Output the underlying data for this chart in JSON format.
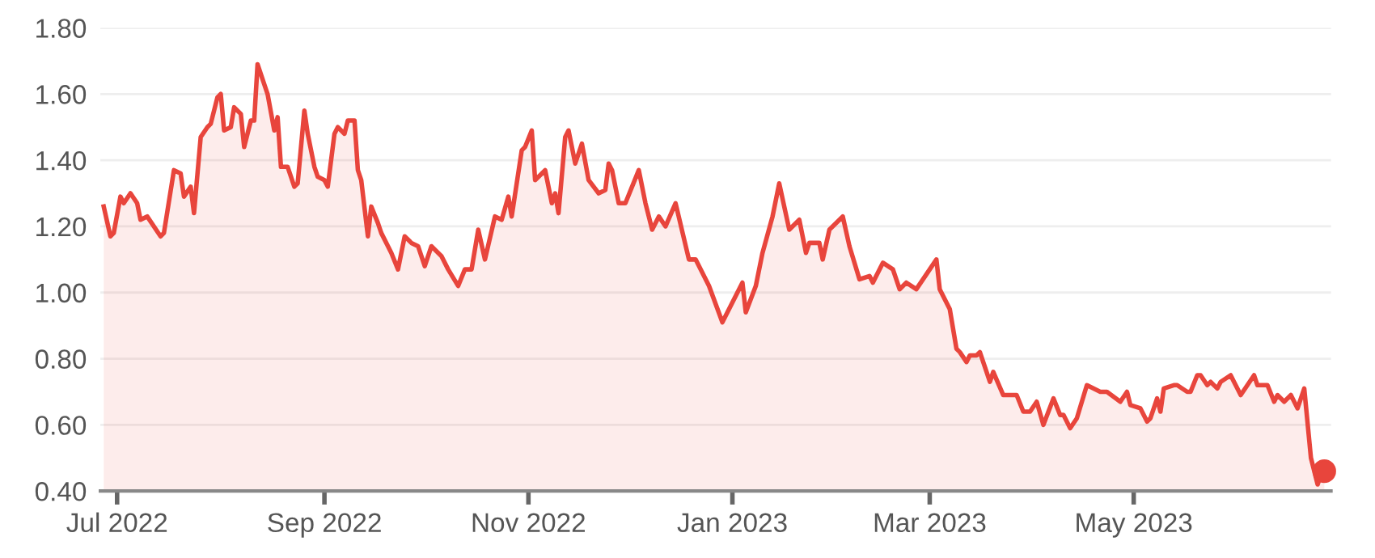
{
  "chart_data": {
    "type": "area",
    "grid": "y",
    "xlim": [
      "2022-06-26",
      "2023-06-29"
    ],
    "xticks": [
      {
        "value": "2022-07-01",
        "label": "Jul 2022"
      },
      {
        "value": "2022-09-01",
        "label": "Sep 2022"
      },
      {
        "value": "2022-11-01",
        "label": "Nov 2022"
      },
      {
        "value": "2023-01-01",
        "label": "Jan 2023"
      },
      {
        "value": "2023-03-01",
        "label": "Mar 2023"
      },
      {
        "value": "2023-05-01",
        "label": "May 2023"
      }
    ],
    "ylim": [
      0.4,
      1.8
    ],
    "yticks": [
      {
        "value": 0.4,
        "label": "0.40"
      },
      {
        "value": 0.6,
        "label": "0.60"
      },
      {
        "value": 0.8,
        "label": "0.80"
      },
      {
        "value": 1.0,
        "label": "1.00"
      },
      {
        "value": 1.2,
        "label": "1.20"
      },
      {
        "value": 1.4,
        "label": "1.40"
      },
      {
        "value": 1.6,
        "label": "1.60"
      },
      {
        "value": 1.8,
        "label": "1.80"
      }
    ],
    "series": [
      {
        "color": "#e8453c",
        "marker": "none",
        "line_style": "solid",
        "x": [
          "2022-06-27",
          "2022-06-29",
          "2022-06-30",
          "2022-07-02",
          "2022-07-03",
          "2022-07-05",
          "2022-07-07",
          "2022-07-08",
          "2022-07-10",
          "2022-07-14",
          "2022-07-15",
          "2022-07-18",
          "2022-07-20",
          "2022-07-21",
          "2022-07-23",
          "2022-07-24",
          "2022-07-26",
          "2022-07-28",
          "2022-07-29",
          "2022-07-31",
          "2022-08-01",
          "2022-08-02",
          "2022-08-04",
          "2022-08-05",
          "2022-08-07",
          "2022-08-08",
          "2022-08-10",
          "2022-08-11",
          "2022-08-12",
          "2022-08-14",
          "2022-08-15",
          "2022-08-17",
          "2022-08-18",
          "2022-08-19",
          "2022-08-21",
          "2022-08-23",
          "2022-08-24",
          "2022-08-26",
          "2022-08-27",
          "2022-08-29",
          "2022-08-30",
          "2022-09-01",
          "2022-09-02",
          "2022-09-04",
          "2022-09-05",
          "2022-09-07",
          "2022-09-08",
          "2022-09-10",
          "2022-09-11",
          "2022-09-12",
          "2022-09-14",
          "2022-09-15",
          "2022-09-17",
          "2022-09-18",
          "2022-09-20",
          "2022-09-21",
          "2022-09-23",
          "2022-09-25",
          "2022-09-27",
          "2022-09-29",
          "2022-10-01",
          "2022-10-03",
          "2022-10-06",
          "2022-10-08",
          "2022-10-11",
          "2022-10-13",
          "2022-10-15",
          "2022-10-17",
          "2022-10-19",
          "2022-10-22",
          "2022-10-24",
          "2022-10-26",
          "2022-10-27",
          "2022-10-30",
          "2022-10-31",
          "2022-11-02",
          "2022-11-03",
          "2022-11-06",
          "2022-11-08",
          "2022-11-09",
          "2022-11-10",
          "2022-11-12",
          "2022-11-13",
          "2022-11-15",
          "2022-11-17",
          "2022-11-19",
          "2022-11-22",
          "2022-11-24",
          "2022-11-25",
          "2022-11-26",
          "2022-11-28",
          "2022-11-30",
          "2022-12-04",
          "2022-12-06",
          "2022-12-08",
          "2022-12-10",
          "2022-12-12",
          "2022-12-15",
          "2022-12-19",
          "2022-12-21",
          "2022-12-25",
          "2022-12-29",
          "2023-01-04",
          "2023-01-05",
          "2023-01-08",
          "2023-01-10",
          "2023-01-13",
          "2023-01-15",
          "2023-01-18",
          "2023-01-21",
          "2023-01-23",
          "2023-01-24",
          "2023-01-27",
          "2023-01-28",
          "2023-01-30",
          "2023-02-03",
          "2023-02-05",
          "2023-02-08",
          "2023-02-11",
          "2023-02-12",
          "2023-02-15",
          "2023-02-18",
          "2023-02-20",
          "2023-02-22",
          "2023-02-25",
          "2023-03-01",
          "2023-03-03",
          "2023-03-04",
          "2023-03-07",
          "2023-03-09",
          "2023-03-10",
          "2023-03-12",
          "2023-03-13",
          "2023-03-15",
          "2023-03-16",
          "2023-03-19",
          "2023-03-20",
          "2023-03-23",
          "2023-03-27",
          "2023-03-29",
          "2023-03-31",
          "2023-04-02",
          "2023-04-04",
          "2023-04-07",
          "2023-04-09",
          "2023-04-10",
          "2023-04-12",
          "2023-04-14",
          "2023-04-17",
          "2023-04-21",
          "2023-04-23",
          "2023-04-27",
          "2023-04-29",
          "2023-04-30",
          "2023-05-03",
          "2023-05-05",
          "2023-05-06",
          "2023-05-08",
          "2023-05-09",
          "2023-05-10",
          "2023-05-13",
          "2023-05-14",
          "2023-05-17",
          "2023-05-18",
          "2023-05-20",
          "2023-05-21",
          "2023-05-23",
          "2023-05-24",
          "2023-05-26",
          "2023-05-27",
          "2023-05-30",
          "2023-05-31",
          "2023-06-02",
          "2023-06-04",
          "2023-06-06",
          "2023-06-07",
          "2023-06-10",
          "2023-06-12",
          "2023-06-13",
          "2023-06-15",
          "2023-06-17",
          "2023-06-19",
          "2023-06-21",
          "2023-06-23",
          "2023-06-25",
          "2023-06-26",
          "2023-06-27"
        ],
        "values": [
          1.26,
          1.17,
          1.18,
          1.29,
          1.27,
          1.3,
          1.27,
          1.22,
          1.23,
          1.17,
          1.18,
          1.37,
          1.36,
          1.29,
          1.32,
          1.24,
          1.47,
          1.5,
          1.51,
          1.59,
          1.6,
          1.49,
          1.5,
          1.56,
          1.54,
          1.44,
          1.52,
          1.52,
          1.69,
          1.63,
          1.6,
          1.49,
          1.53,
          1.38,
          1.38,
          1.32,
          1.33,
          1.55,
          1.48,
          1.38,
          1.35,
          1.34,
          1.32,
          1.48,
          1.5,
          1.48,
          1.52,
          1.52,
          1.37,
          1.34,
          1.17,
          1.26,
          1.21,
          1.18,
          1.14,
          1.12,
          1.07,
          1.17,
          1.15,
          1.14,
          1.08,
          1.14,
          1.11,
          1.07,
          1.02,
          1.07,
          1.07,
          1.19,
          1.1,
          1.23,
          1.22,
          1.29,
          1.23,
          1.43,
          1.44,
          1.49,
          1.34,
          1.37,
          1.27,
          1.3,
          1.24,
          1.47,
          1.49,
          1.39,
          1.45,
          1.34,
          1.3,
          1.31,
          1.39,
          1.37,
          1.27,
          1.27,
          1.37,
          1.27,
          1.19,
          1.23,
          1.2,
          1.27,
          1.1,
          1.1,
          1.02,
          0.91,
          1.03,
          0.94,
          1.02,
          1.12,
          1.23,
          1.33,
          1.19,
          1.22,
          1.12,
          1.15,
          1.15,
          1.1,
          1.19,
          1.23,
          1.14,
          1.04,
          1.05,
          1.03,
          1.09,
          1.07,
          1.01,
          1.03,
          1.01,
          1.07,
          1.1,
          1.01,
          0.95,
          0.83,
          0.82,
          0.79,
          0.81,
          0.81,
          0.82,
          0.73,
          0.76,
          0.69,
          0.69,
          0.64,
          0.64,
          0.67,
          0.6,
          0.68,
          0.63,
          0.63,
          0.59,
          0.62,
          0.72,
          0.7,
          0.7,
          0.67,
          0.7,
          0.66,
          0.65,
          0.61,
          0.62,
          0.68,
          0.64,
          0.71,
          0.72,
          0.72,
          0.7,
          0.7,
          0.75,
          0.75,
          0.72,
          0.73,
          0.71,
          0.73,
          0.75,
          0.73,
          0.69,
          0.72,
          0.75,
          0.72,
          0.72,
          0.67,
          0.69,
          0.67,
          0.69,
          0.65,
          0.71,
          0.5,
          0.42,
          0.45,
          0.46
        ]
      },
      {
        "type": "scatter",
        "color": "#e8453c",
        "marker": "circle",
        "x": [
          "2023-06-27"
        ],
        "values": [
          0.46
        ]
      }
    ]
  }
}
